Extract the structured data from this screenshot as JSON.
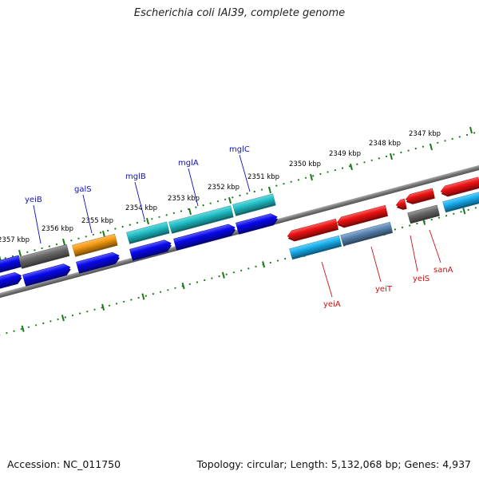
{
  "title": "Escherichia coli IAI39, complete genome",
  "accession_text": "Accession: NC_011750",
  "meta_text": "Topology: circular; Length: 5,132,068 bp; Genes: 4,937",
  "colors": {
    "backbone": "#7a7a7a",
    "tick": "#1a7a1a",
    "forward_label": "#1010c0",
    "reverse_label": "#d01010",
    "gene_red": "#ee1111",
    "gene_blue": "#0808ee",
    "gene_cyan": "#20c0c8",
    "gene_orange": "#f59a10",
    "gene_gray": "#6a6a6a",
    "gene_light_blue": "#18b0f0",
    "gene_steel": "#5a86b6"
  },
  "kbp_ticks": [
    "2347 kbp",
    "2348 kbp",
    "2349 kbp",
    "2350 kbp",
    "2351 kbp",
    "2352 kbp",
    "2353 kbp",
    "2354 kbp",
    "2355 kbp",
    "2356 kbp",
    "2357 kbp"
  ],
  "forward_gene_labels": [
    "yeiB",
    "galS",
    "mglB",
    "mglA",
    "mglC"
  ],
  "reverse_gene_labels": [
    "yeiA",
    "yeiT",
    "yeiS",
    "sanA"
  ]
}
